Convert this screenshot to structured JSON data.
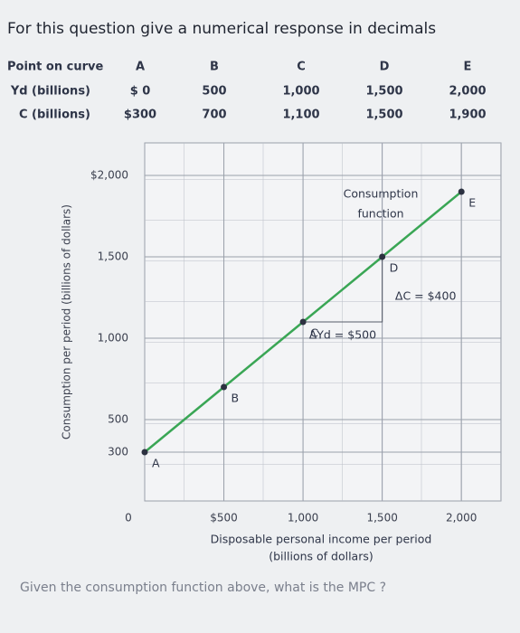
{
  "header": {
    "question": "For this question give a numerical response in decimals"
  },
  "table": {
    "header": [
      "Point on curve",
      "A",
      "B",
      "C",
      "D",
      "E"
    ],
    "rows": [
      [
        "Yd (billions)",
        "$ 0",
        "500",
        "1,000",
        "1,500",
        "2,000"
      ],
      [
        "C (billions)",
        "$300",
        "700",
        "1,100",
        "1,500",
        "1,900"
      ]
    ]
  },
  "chart_data": {
    "type": "line",
    "x": [
      0,
      500,
      1000,
      1500,
      2000
    ],
    "values": [
      300,
      700,
      1100,
      1500,
      1900
    ],
    "color": "#3aa655",
    "xlim": [
      0,
      2250
    ],
    "ylim": [
      0,
      2200
    ],
    "xticks": [
      {
        "value": 0,
        "label": "0"
      },
      {
        "value": 500,
        "label": "$500"
      },
      {
        "value": 1000,
        "label": "1,000"
      },
      {
        "value": 1500,
        "label": "1,500"
      },
      {
        "value": 2000,
        "label": "2,000"
      }
    ],
    "yticks": [
      300,
      500,
      {
        "value": 1000,
        "label": "1,000"
      },
      {
        "value": 1500,
        "label": "1,500"
      },
      {
        "value": 2000,
        "label": "$2,000"
      }
    ],
    "x_label": "Disposable personal income per period",
    "x_label_unit": "(billions of dollars)",
    "y_label": "Consumption per period (billions of dollars)",
    "curve_label": [
      "Consumption",
      "function"
    ],
    "delta_c": "ΔC = $400",
    "delta_yd": "ΔYd = $500"
  },
  "footer": {
    "question": "Given the consumption function above, what is the MPC ?"
  }
}
